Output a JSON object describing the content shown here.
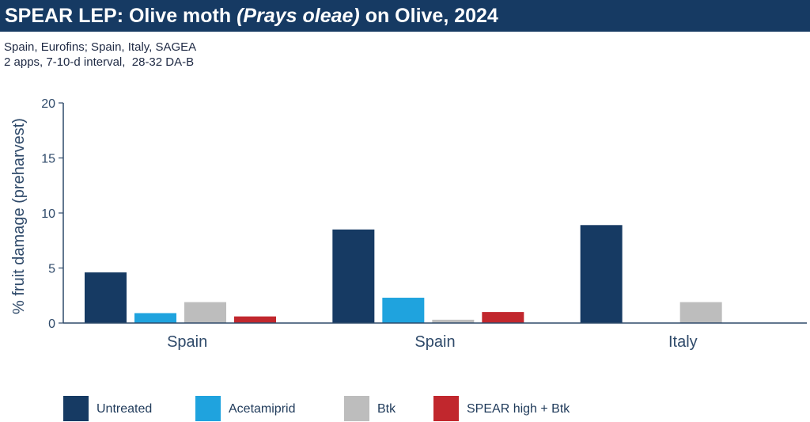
{
  "header": {
    "title_main": "SPEAR LEP: Olive moth ",
    "title_italic": "(Prays oleae)",
    "title_tail": " on Olive, 2024"
  },
  "subtitle": {
    "line1": "Spain, Eurofins; Spain, Italy, SAGEA",
    "line2": "2 apps, 7-10-d interval,  28-32 DA-B"
  },
  "colors": {
    "header_bg": "#163a63",
    "untreated": "#163a63",
    "acetamiprid": "#1fa3de",
    "btk": "#bdbdbd",
    "spear": "#c1272d",
    "axis": "#2f4a6a"
  },
  "chart_data": {
    "type": "bar",
    "categories": [
      "Spain",
      "Spain",
      "Italy"
    ],
    "series": [
      {
        "name": "Untreated",
        "color": "#163a63",
        "values": [
          4.6,
          8.5,
          8.9
        ]
      },
      {
        "name": "Acetamiprid",
        "color": "#1fa3de",
        "values": [
          0.9,
          2.3,
          null
        ]
      },
      {
        "name": "Btk",
        "color": "#bdbdbd",
        "values": [
          1.9,
          0.3,
          1.9
        ]
      },
      {
        "name": "SPEAR high + Btk",
        "color": "#c1272d",
        "values": [
          0.6,
          1.0,
          null
        ]
      }
    ],
    "ylabel": "% fruit damage (preharvest)",
    "xlabel": "",
    "ylim": [
      0,
      20
    ],
    "yticks": [
      0,
      5,
      10,
      15,
      20
    ],
    "grid": false,
    "legend_position": "bottom"
  }
}
